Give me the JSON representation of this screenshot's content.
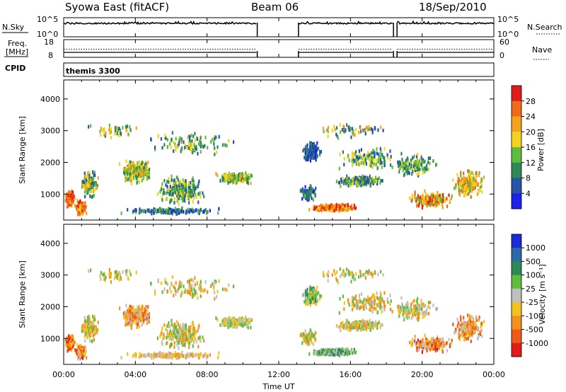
{
  "header": {
    "radar": "Syowa East (fitACF)",
    "beam": "Beam 06",
    "date": "18/Sep/2010"
  },
  "chart_data": [
    {
      "type": "line",
      "panel": "nsky-nsearch",
      "left_label": "N.Sky",
      "right_label": "N.Search",
      "left_ticks": [
        "10^5",
        "10^0"
      ],
      "right_ticks": [
        "10^5",
        "10^0"
      ],
      "data_gaps_ut": [
        [
          10.8,
          13.1
        ],
        [
          18.4,
          18.6
        ]
      ]
    },
    {
      "type": "line",
      "panel": "freq-nave",
      "left_label": "Freq. [MHz]",
      "left_label_line1": "Freq.",
      "left_label_line2": "[MHz]",
      "right_label": "Nave",
      "left_ticks": [
        "18",
        "8"
      ],
      "right_ticks": [
        "60",
        "0"
      ],
      "ylim_left": [
        8,
        18
      ],
      "ylim_right": [
        0,
        60
      ]
    },
    {
      "type": "table",
      "panel": "cpid",
      "label": "CPID",
      "program": "themis 3300"
    },
    {
      "type": "heatmap",
      "panel": "power",
      "xlabel": "",
      "ylabel": "Slant Range [km]",
      "xlim_ut": [
        0,
        24
      ],
      "ylim": [
        180,
        4600
      ],
      "yticks": [
        "1000",
        "2000",
        "3000",
        "4000"
      ],
      "colorbar_label": "Power [dB]",
      "colorbar_ticks": [
        "4",
        "8",
        "12",
        "16",
        "20",
        "24",
        "28"
      ],
      "colors": [
        "#1c20e8",
        "#2554a8",
        "#2e8a55",
        "#5fbd3c",
        "#f2d31e",
        "#f5a21c",
        "#f06a1a",
        "#e31a1a"
      ]
    },
    {
      "type": "heatmap",
      "panel": "velocity",
      "xlabel": "Time UT",
      "ylabel": "Slant Range [km]",
      "xlim_ut": [
        0,
        24
      ],
      "ylim": [
        180,
        4600
      ],
      "yticks": [
        "1000",
        "2000",
        "3000",
        "4000"
      ],
      "xticks": [
        "00:00",
        "04:00",
        "08:00",
        "12:00",
        "16:00",
        "20:00",
        "00:00"
      ],
      "colorbar_label": "Velocity [m s⁻¹]",
      "colorbar_ticks": [
        "1000",
        "500",
        "100",
        "25",
        "-25",
        "-100",
        "-500",
        "-1000"
      ],
      "colors": [
        "#1a2ad8",
        "#2a6aa8",
        "#2e8a55",
        "#5fbd3c",
        "#c0c0c0",
        "#f2c21e",
        "#f5901c",
        "#ee5a1a",
        "#e31a1a"
      ]
    }
  ]
}
